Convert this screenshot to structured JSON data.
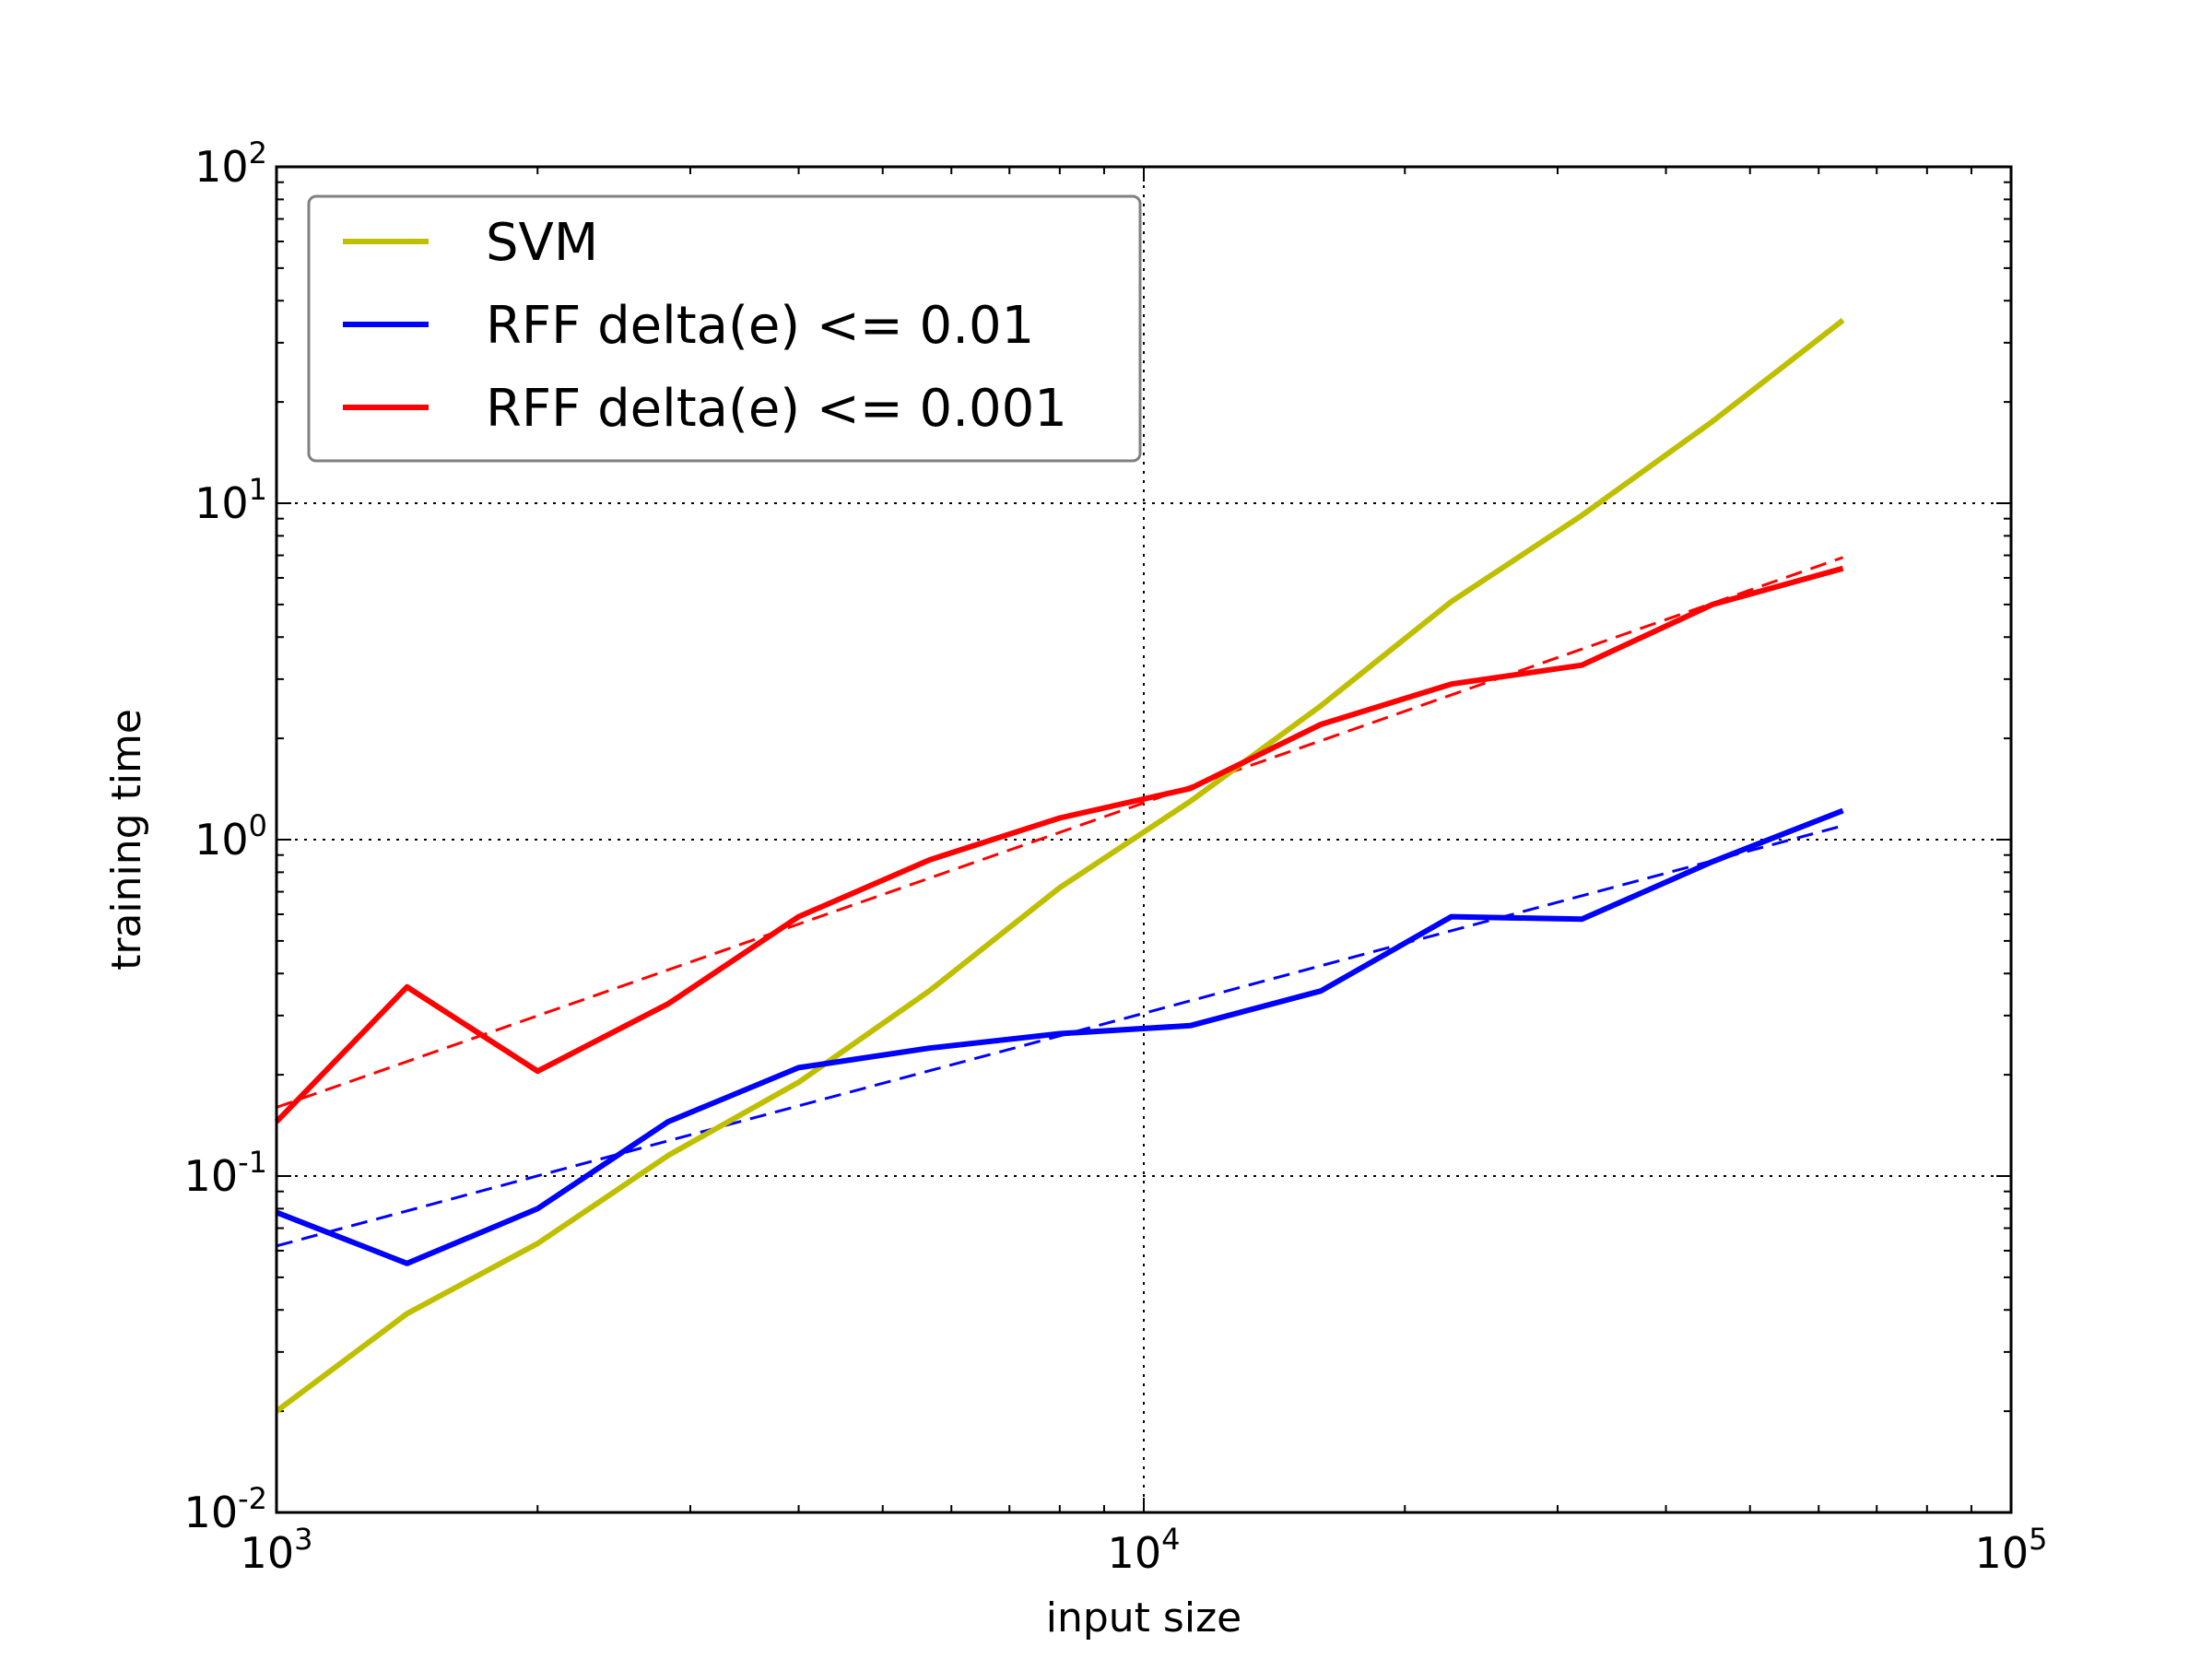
{
  "chart_data": {
    "type": "line",
    "title": "",
    "xlabel": "input size",
    "ylabel": "training time",
    "xscale": "log",
    "yscale": "log",
    "xlim": [
      1000,
      100000
    ],
    "ylim": [
      0.01,
      100
    ],
    "grid": "dotted, major ticks",
    "legend_position": "top-left",
    "x_ticks": [
      {
        "value": 1000,
        "base": "10",
        "exp": "3"
      },
      {
        "value": 10000,
        "base": "10",
        "exp": "4"
      },
      {
        "value": 100000,
        "base": "10",
        "exp": "5"
      }
    ],
    "y_ticks": [
      {
        "value": 0.01,
        "base": "10",
        "exp": "-2"
      },
      {
        "value": 0.1,
        "base": "10",
        "exp": "-1"
      },
      {
        "value": 1,
        "base": "10",
        "exp": "0"
      },
      {
        "value": 10,
        "base": "10",
        "exp": "1"
      },
      {
        "value": 100,
        "base": "10",
        "exp": "2"
      }
    ],
    "series": [
      {
        "name": "SVM",
        "color": "#bfbf00",
        "style": "solid",
        "in_legend": true,
        "x": [
          1000,
          1414,
          2000,
          2828,
          4000,
          5657,
          8000,
          11314,
          16000,
          22627,
          32000,
          45255,
          64000
        ],
        "y": [
          0.02,
          0.039,
          0.063,
          0.115,
          0.19,
          0.355,
          0.72,
          1.3,
          2.5,
          5.1,
          9.2,
          17.5,
          35
        ]
      },
      {
        "name": "RFF delta(e) <= 0.01",
        "color": "#0000ff",
        "style": "solid",
        "in_legend": true,
        "x": [
          1000,
          1414,
          2000,
          2828,
          4000,
          5657,
          8000,
          11314,
          16000,
          22627,
          32000,
          45255,
          64000
        ],
        "y": [
          0.078,
          0.055,
          0.08,
          0.145,
          0.21,
          0.24,
          0.265,
          0.28,
          0.355,
          0.59,
          0.58,
          0.86,
          1.22
        ]
      },
      {
        "name": "RFF delta(e) <= 0.001",
        "color": "#ff0000",
        "style": "solid",
        "in_legend": true,
        "x": [
          1000,
          1414,
          2000,
          2828,
          4000,
          5657,
          8000,
          11314,
          16000,
          22627,
          32000,
          45255,
          64000
        ],
        "y": [
          0.145,
          0.365,
          0.205,
          0.325,
          0.59,
          0.87,
          1.16,
          1.42,
          2.2,
          2.9,
          3.3,
          5.0,
          6.4
        ]
      },
      {
        "name": "",
        "color": "#0000ff",
        "style": "dashed",
        "in_legend": false,
        "x": [
          1000,
          64000
        ],
        "y": [
          0.062,
          1.1
        ]
      },
      {
        "name": "",
        "color": "#ff0000",
        "style": "dashed",
        "in_legend": false,
        "x": [
          1000,
          64000
        ],
        "y": [
          0.16,
          6.9
        ]
      }
    ]
  }
}
